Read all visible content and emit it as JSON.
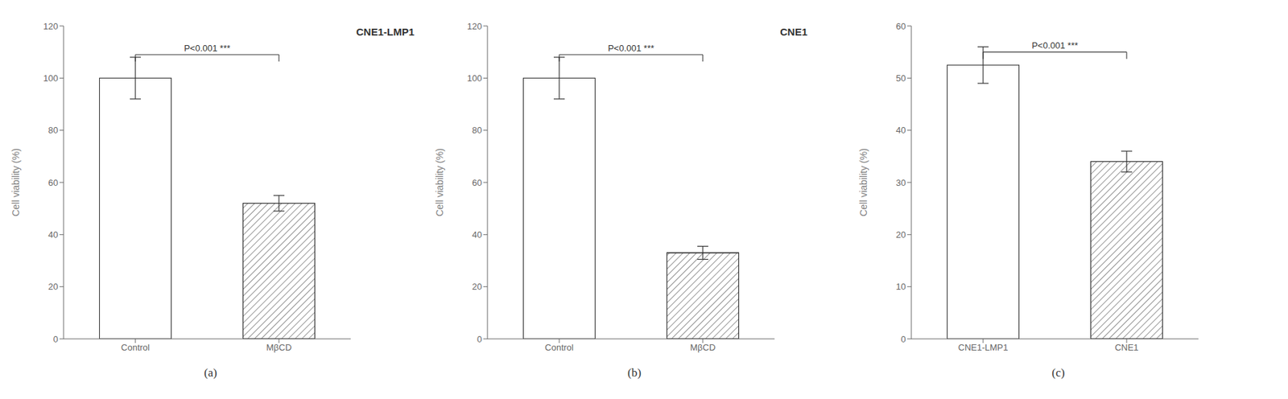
{
  "chart_data": [
    {
      "type": "bar",
      "title": "CNE1-LMP1",
      "xlabel": "(a)",
      "ylabel": "Cell viability (%)",
      "categories": [
        "Control",
        "MβCD"
      ],
      "values": [
        100,
        52
      ],
      "errors": [
        8,
        3
      ],
      "colors": [
        "white",
        "white"
      ],
      "ylim": [
        0,
        120
      ],
      "yticks": [
        0,
        20,
        40,
        60,
        80,
        100,
        120
      ],
      "grid": false,
      "annotations": [
        {
          "text": "P<0.001 ***",
          "y": 109
        }
      ]
    },
    {
      "type": "bar",
      "title": "CNE1",
      "xlabel": "(b)",
      "ylabel": "Cell viability (%)",
      "categories": [
        "Control",
        "MβCD"
      ],
      "values": [
        100,
        33
      ],
      "errors": [
        8,
        2.5
      ],
      "colors": [
        "white",
        "white"
      ],
      "ylim": [
        0,
        120
      ],
      "yticks": [
        0,
        20,
        40,
        60,
        80,
        100,
        120
      ],
      "grid": false,
      "annotations": [
        {
          "text": "P<0.001 ***",
          "y": 109
        }
      ]
    },
    {
      "type": "bar",
      "xlabel": "(c)",
      "ylabel": "Cell viability (%)",
      "categories": [
        "CNE1-LMP1",
        "CNE1"
      ],
      "values": [
        52.5,
        34
      ],
      "errors": [
        3.5,
        2
      ],
      "colors": [
        "white",
        "white"
      ],
      "ylim": [
        0,
        60
      ],
      "yticks": [
        0,
        10,
        20,
        30,
        40,
        50,
        60
      ],
      "grid": false,
      "annotations": [
        {
          "text": "P<0.001 ***",
          "y": 55
        }
      ]
    }
  ]
}
